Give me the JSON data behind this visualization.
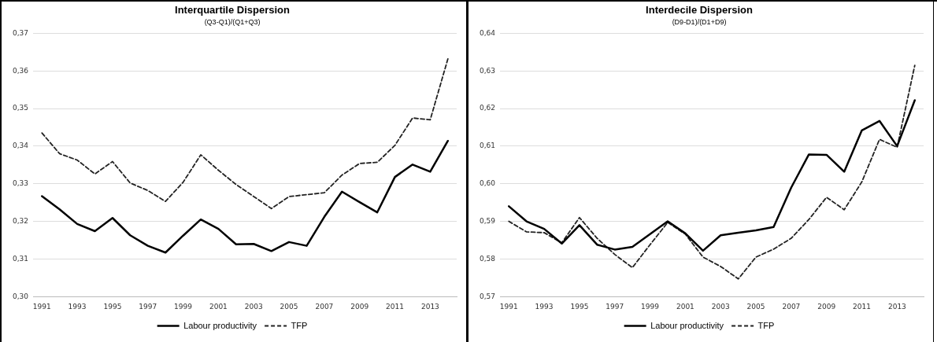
{
  "chart_data": [
    {
      "type": "line",
      "title": "Interquartile Dispersion",
      "subtitle": "(Q3-Q1)/(Q1+Q3)",
      "categories": [
        "1991",
        null,
        "1993",
        null,
        "1995",
        null,
        "1997",
        null,
        "1999",
        null,
        "2001",
        null,
        "2003",
        null,
        "2005",
        null,
        "2007",
        null,
        "2009",
        null,
        "2011",
        null,
        "2013",
        null
      ],
      "series": [
        {
          "name": "Labour productivity",
          "color": "#000000",
          "line_style": "solid",
          "values": [
            0.3267,
            0.3232,
            0.3193,
            0.3174,
            0.3209,
            0.3163,
            0.3135,
            0.3117,
            0.3162,
            0.3205,
            0.318,
            0.3139,
            0.314,
            0.3121,
            0.3145,
            0.3135,
            0.3212,
            0.3279,
            0.3251,
            0.3224,
            0.3318,
            0.3351,
            0.3332,
            0.3414
          ]
        },
        {
          "name": "TFP",
          "color": "#222222",
          "line_style": "dashed",
          "values": [
            0.3435,
            0.338,
            0.3363,
            0.3326,
            0.3359,
            0.3302,
            0.3282,
            0.3253,
            0.3304,
            0.3377,
            0.3336,
            0.3298,
            0.3266,
            0.3234,
            0.3266,
            0.3271,
            0.3276,
            0.3323,
            0.3354,
            0.3357,
            0.3402,
            0.3475,
            0.347,
            0.3632
          ]
        }
      ],
      "ylim": [
        0.3,
        0.37
      ],
      "yticks": [
        {
          "value": 0.3,
          "label": "0,30"
        },
        {
          "value": 0.31,
          "label": "0,31"
        },
        {
          "value": 0.32,
          "label": "0,32"
        },
        {
          "value": 0.33,
          "label": "0,33"
        },
        {
          "value": 0.34,
          "label": "0,34"
        },
        {
          "value": 0.35,
          "label": "0,35"
        },
        {
          "value": 0.36,
          "label": "0,36"
        },
        {
          "value": 0.37,
          "label": "0,37"
        }
      ],
      "grid": "y",
      "legend": "bottom",
      "marker": "none"
    },
    {
      "type": "line",
      "title": "Interdecile Dispersion",
      "subtitle": "(D9-D1)/(D1+D9)",
      "categories": [
        "1991",
        null,
        "1993",
        null,
        "1995",
        null,
        "1997",
        null,
        "1999",
        null,
        "2001",
        null,
        "2003",
        null,
        "2005",
        null,
        "2007",
        null,
        "2009",
        null,
        "2011",
        null,
        "2013",
        null
      ],
      "series": [
        {
          "name": "Labour productivity",
          "color": "#000000",
          "line_style": "solid",
          "values": [
            0.594,
            0.59,
            0.588,
            0.5841,
            0.589,
            0.5838,
            0.5825,
            0.5832,
            0.5866,
            0.59,
            0.5868,
            0.5822,
            0.5863,
            0.587,
            0.5876,
            0.5885,
            0.599,
            0.6078,
            0.6077,
            0.6032,
            0.6142,
            0.6167,
            0.61,
            0.6222
          ]
        },
        {
          "name": "TFP",
          "color": "#222222",
          "line_style": "dashed",
          "values": [
            0.59,
            0.5872,
            0.587,
            0.5843,
            0.591,
            0.5855,
            0.5812,
            0.5777,
            0.5838,
            0.5897,
            0.5866,
            0.5805,
            0.578,
            0.5747,
            0.5805,
            0.5826,
            0.5855,
            0.5905,
            0.5964,
            0.5931,
            0.6005,
            0.6118,
            0.6097,
            0.6315
          ]
        }
      ],
      "ylim": [
        0.57,
        0.64
      ],
      "yticks": [
        {
          "value": 0.57,
          "label": "0,57"
        },
        {
          "value": 0.58,
          "label": "0,58"
        },
        {
          "value": 0.59,
          "label": "0,59"
        },
        {
          "value": 0.6,
          "label": "0,60"
        },
        {
          "value": 0.61,
          "label": "0,61"
        },
        {
          "value": 0.62,
          "label": "0,62"
        },
        {
          "value": 0.63,
          "label": "0,63"
        },
        {
          "value": 0.64,
          "label": "0,64"
        }
      ],
      "grid": "y",
      "legend": "bottom",
      "marker": "none"
    }
  ]
}
